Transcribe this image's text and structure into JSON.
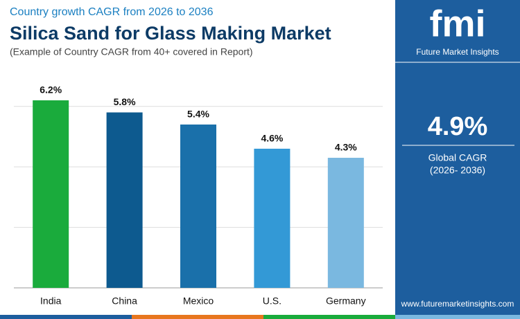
{
  "chart_data": {
    "type": "bar",
    "kicker": "Country growth CAGR from 2026 to 2036",
    "title": "Silica Sand for Glass Making Market",
    "subtitle": "(Example of Country CAGR from 40+ covered in Report)",
    "categories": [
      "India",
      "China",
      "Mexico",
      "U.S.",
      "Germany"
    ],
    "values": [
      6.2,
      5.8,
      5.4,
      4.6,
      4.3
    ],
    "value_labels": [
      "6.2%",
      "5.8%",
      "5.4%",
      "4.6%",
      "4.3%"
    ],
    "colors": [
      "#1aab3c",
      "#0d5a8f",
      "#1a70aa",
      "#3399d6",
      "#7ab8e0"
    ],
    "ylim": [
      0,
      7
    ],
    "yticks": [
      0,
      2,
      4,
      6
    ],
    "grid": true
  },
  "side_panel": {
    "logo": "fmi",
    "brand": "Future Market Insights",
    "headline": "4.9%",
    "label": "Global CAGR",
    "period": "(2026- 2036)",
    "website": "www.futuremarketinsights.com"
  }
}
